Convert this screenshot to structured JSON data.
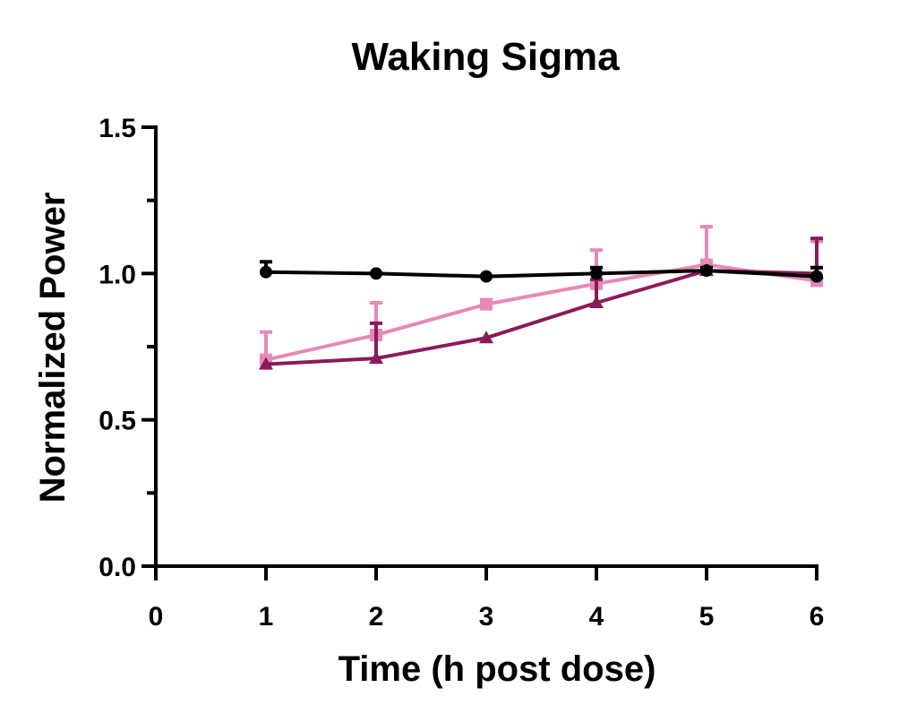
{
  "chart_data": {
    "type": "line",
    "title": "Waking Sigma",
    "xlabel": "Time (h post dose)",
    "ylabel": "Normalized Power",
    "xlim": [
      0,
      6
    ],
    "ylim": [
      0,
      1.5
    ],
    "x_ticks": [
      "0",
      "1",
      "2",
      "3",
      "4",
      "5",
      "6"
    ],
    "y_ticks": [
      "0.0",
      "0.5",
      "1.0",
      "1.5"
    ],
    "grid": false,
    "x": [
      1,
      2,
      3,
      4,
      5,
      6
    ],
    "series": [
      {
        "color": "#000000",
        "marker": "circle",
        "values": [
          1.005,
          1.0,
          0.99,
          1.0,
          1.01,
          0.99
        ],
        "error_upper": [
          1.04,
          1.0,
          0.99,
          1.02,
          1.02,
          1.02
        ]
      },
      {
        "color": "#8b1a5a",
        "marker": "triangle",
        "values": [
          0.69,
          0.71,
          0.78,
          0.9,
          1.01,
          1.0
        ],
        "error_upper": [
          0.69,
          0.83,
          0.78,
          0.98,
          1.01,
          1.12
        ]
      },
      {
        "color": "#e58ab5",
        "marker": "square",
        "values": [
          0.705,
          0.79,
          0.895,
          0.965,
          1.03,
          0.975
        ],
        "error_upper": [
          0.8,
          0.9,
          0.895,
          1.08,
          1.16,
          1.11
        ]
      }
    ]
  }
}
